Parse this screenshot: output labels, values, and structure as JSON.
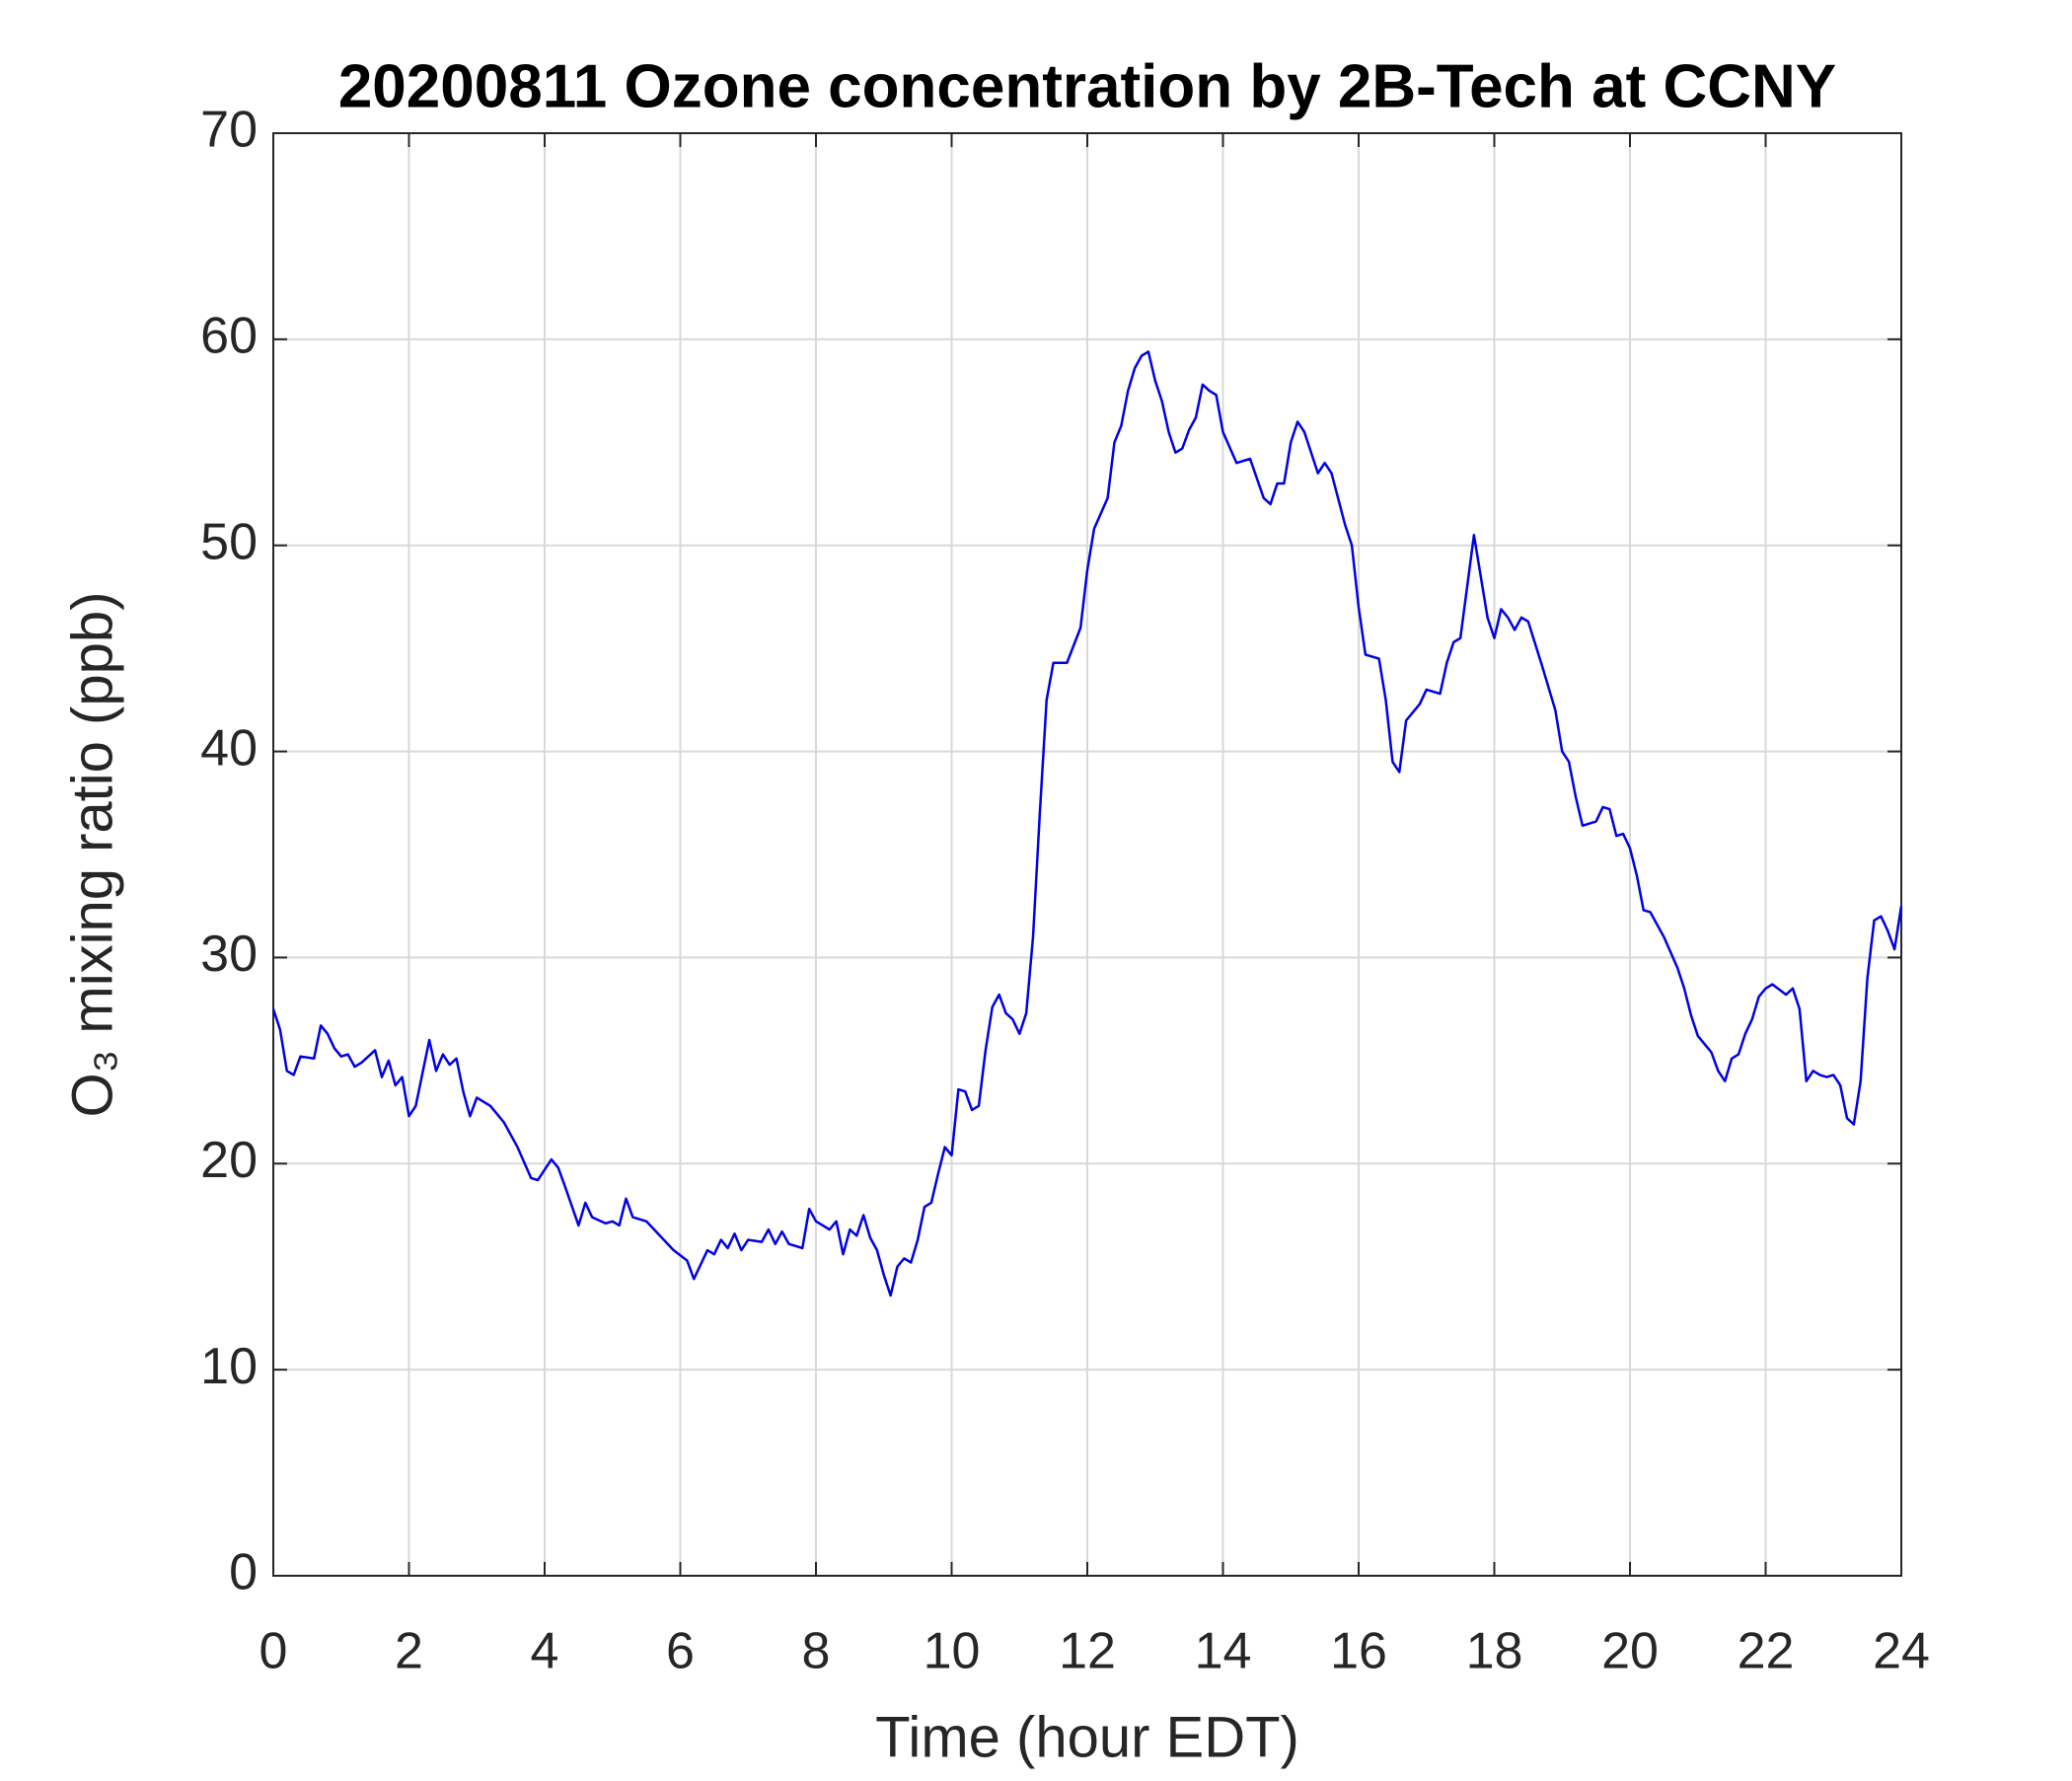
{
  "chart_data": {
    "type": "line",
    "title": "20200811 Ozone concentration by 2B-Tech at CCNY",
    "xlabel": "Time (hour EDT)",
    "ylabel": "O₃ mixing ratio (ppb)",
    "xlim": [
      0,
      24
    ],
    "xticks": [
      0,
      2,
      4,
      6,
      8,
      10,
      12,
      14,
      16,
      18,
      20,
      22,
      24
    ],
    "ylim": [
      0,
      70
    ],
    "yticks": [
      0,
      10,
      20,
      30,
      40,
      50,
      60,
      70
    ],
    "grid": true,
    "series": [
      {
        "color": "#0000e6",
        "x": [
          0,
          0.1,
          0.2,
          0.3,
          0.4,
          0.6,
          0.7,
          0.8,
          0.9,
          1.0,
          1.1,
          1.2,
          1.3,
          1.5,
          1.6,
          1.7,
          1.8,
          1.9,
          2.0,
          2.1,
          2.3,
          2.4,
          2.5,
          2.6,
          2.7,
          2.8,
          2.9,
          3.0,
          3.2,
          3.4,
          3.6,
          3.8,
          3.9,
          4.1,
          4.2,
          4.3,
          4.5,
          4.6,
          4.7,
          4.9,
          5.0,
          5.1,
          5.2,
          5.3,
          5.5,
          5.7,
          5.9,
          6.1,
          6.2,
          6.4,
          6.5,
          6.6,
          6.7,
          6.8,
          6.9,
          7.0,
          7.2,
          7.3,
          7.4,
          7.5,
          7.6,
          7.8,
          7.9,
          8.0,
          8.1,
          8.2,
          8.3,
          8.4,
          8.5,
          8.6,
          8.7,
          8.8,
          8.9,
          9.0,
          9.1,
          9.2,
          9.3,
          9.4,
          9.5,
          9.6,
          9.7,
          9.8,
          9.9,
          10.0,
          10.1,
          10.2,
          10.3,
          10.4,
          10.5,
          10.6,
          10.7,
          10.8,
          10.9,
          11.0,
          11.1,
          11.2,
          11.3,
          11.4,
          11.5,
          11.7,
          11.9,
          12.0,
          12.1,
          12.3,
          12.4,
          12.5,
          12.6,
          12.7,
          12.8,
          12.9,
          13.0,
          13.1,
          13.2,
          13.3,
          13.4,
          13.5,
          13.6,
          13.7,
          13.8,
          13.9,
          14.0,
          14.2,
          14.4,
          14.6,
          14.7,
          14.8,
          14.9,
          15.0,
          15.1,
          15.2,
          15.3,
          15.4,
          15.5,
          15.6,
          15.8,
          15.9,
          16.0,
          16.1,
          16.3,
          16.4,
          16.5,
          16.6,
          16.7,
          16.9,
          17.0,
          17.2,
          17.3,
          17.4,
          17.5,
          17.6,
          17.7,
          17.8,
          17.9,
          18.0,
          18.1,
          18.2,
          18.3,
          18.4,
          18.5,
          18.7,
          18.9,
          19.0,
          19.1,
          19.2,
          19.3,
          19.5,
          19.6,
          19.7,
          19.8,
          19.9,
          20.0,
          20.1,
          20.2,
          20.3,
          20.5,
          20.7,
          20.8,
          20.9,
          21.0,
          21.1,
          21.2,
          21.3,
          21.4,
          21.5,
          21.6,
          21.7,
          21.8,
          21.9,
          22.0,
          22.1,
          22.3,
          22.4,
          22.5,
          22.6,
          22.7,
          22.8,
          22.9,
          23.0,
          23.1,
          23.2,
          23.3,
          23.4,
          23.5,
          23.6,
          23.7,
          23.8,
          23.9,
          24.0
        ],
        "values": [
          27.5,
          26.5,
          24.5,
          24.3,
          25.2,
          25.1,
          26.7,
          26.3,
          25.6,
          25.2,
          25.3,
          24.7,
          24.9,
          25.5,
          24.2,
          25.0,
          23.8,
          24.2,
          22.3,
          22.8,
          26.0,
          24.5,
          25.3,
          24.8,
          25.1,
          23.5,
          22.3,
          23.2,
          22.8,
          22.0,
          20.8,
          19.3,
          19.2,
          20.2,
          19.8,
          18.9,
          17.0,
          18.1,
          17.4,
          17.1,
          17.2,
          17.0,
          18.3,
          17.4,
          17.2,
          16.5,
          15.8,
          15.3,
          14.4,
          15.8,
          15.6,
          16.3,
          15.9,
          16.6,
          15.8,
          16.3,
          16.2,
          16.8,
          16.1,
          16.7,
          16.1,
          15.9,
          17.8,
          17.2,
          17.0,
          16.8,
          17.2,
          15.6,
          16.8,
          16.5,
          17.5,
          16.4,
          15.8,
          14.6,
          13.6,
          15.0,
          15.4,
          15.2,
          16.3,
          17.9,
          18.1,
          19.5,
          20.8,
          20.4,
          23.6,
          23.5,
          22.6,
          22.8,
          25.5,
          27.6,
          28.2,
          27.3,
          27.0,
          26.3,
          27.3,
          31,
          37,
          42.5,
          44.3,
          44.3,
          46.0,
          48.8,
          50.8,
          52.3,
          55.0,
          55.8,
          57.5,
          58.6,
          59.2,
          59.4,
          58.0,
          57.0,
          55.5,
          54.5,
          54.7,
          55.6,
          56.2,
          57.8,
          57.5,
          57.3,
          55.5,
          54.0,
          54.2,
          52.3,
          52.0,
          53.0,
          53.0,
          55.0,
          56.0,
          55.5,
          54.5,
          53.5,
          54.0,
          53.5,
          51,
          50.0,
          47,
          44.7,
          44.5,
          42.5,
          39.5,
          39.0,
          41.5,
          42.3,
          43.0,
          42.8,
          44.3,
          45.3,
          45.5,
          48.0,
          50.5,
          48.5,
          46.5,
          45.5,
          46.9,
          46.5,
          45.9,
          46.5,
          46.3,
          44.2,
          42.0,
          40.0,
          39.5,
          37.8,
          36.4,
          36.6,
          37.3,
          37.2,
          35.9,
          36.0,
          35.3,
          34.0,
          32.3,
          32.2,
          31.0,
          29.5,
          28.5,
          27.2,
          26.2,
          25.8,
          25.4,
          24.5,
          24.0,
          25.1,
          25.3,
          26.3,
          27.0,
          28.1,
          28.5,
          28.7,
          28.2,
          28.5,
          27.5,
          24.0,
          24.5,
          24.3,
          24.2,
          24.3,
          23.8,
          22.2,
          21.9,
          24.0,
          29.0,
          31.8,
          32.0,
          31.3,
          30.4,
          32.5
        ]
      }
    ]
  }
}
